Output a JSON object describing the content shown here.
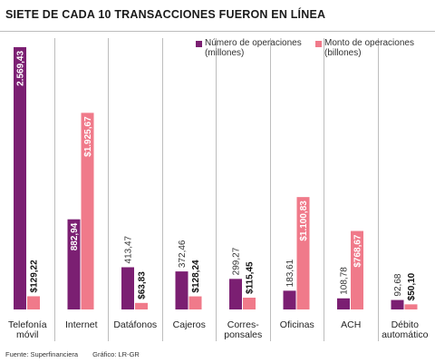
{
  "title": "SIETE DE CADA 10 TRANSACCIONES FUERON EN LÍNEA",
  "source": "Fuente: Superfinanciera",
  "credit": "Gráfico: LR-GR",
  "colors": {
    "series_a": "#7b1f72",
    "series_b": "#f07a8a",
    "divider": "#bdbdbd"
  },
  "legend": [
    {
      "line1": "Número de operaciones",
      "line2": "(millones)"
    },
    {
      "line1": "Monto de operaciones",
      "line2": "(billones)"
    }
  ],
  "chart_data": {
    "type": "bar",
    "categories": [
      [
        "Telefonía",
        "móvil"
      ],
      [
        "Internet"
      ],
      [
        "Datáfonos"
      ],
      [
        "Cajeros"
      ],
      [
        "Corres-",
        "ponsales"
      ],
      [
        "Oficinas"
      ],
      [
        "ACH"
      ],
      [
        "Débito",
        "automático"
      ]
    ],
    "series": [
      {
        "name": "Número de operaciones (millones)",
        "values": [
          2569.43,
          882.94,
          413.47,
          372.46,
          299.27,
          183.61,
          108.78,
          92.68
        ],
        "labels": [
          "2.569,43",
          "882,94",
          "413,47",
          "372,46",
          "299,27",
          "183,61",
          "108,78",
          "92,68"
        ]
      },
      {
        "name": "Monto de operaciones (billones)",
        "values": [
          129.22,
          1925.67,
          63.83,
          128.24,
          115.45,
          1100.83,
          768.67,
          50.1
        ],
        "labels": [
          "$129,22",
          "$1.925,67",
          "$63,83",
          "$128,24",
          "$115,45",
          "$1.100,83",
          "$768,67",
          "$50,10"
        ]
      }
    ]
  }
}
